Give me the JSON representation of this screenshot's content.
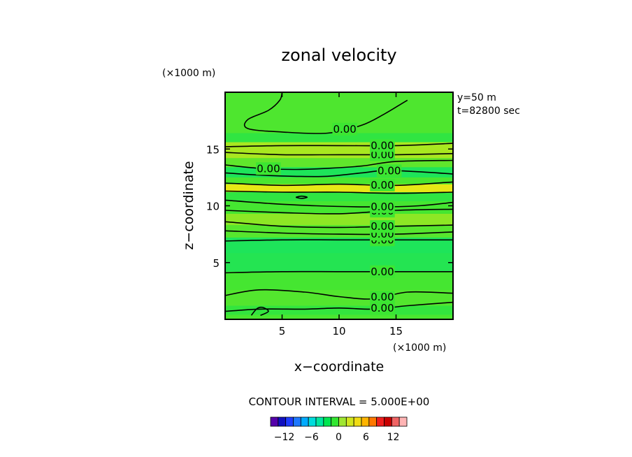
{
  "chart_data": {
    "type": "heatmap",
    "title": "zonal velocity",
    "xlabel": "x−coordinate",
    "ylabel": "z−coordinate",
    "x_unit": "(×1000 m)",
    "z_unit": "(×1000 m)",
    "xlim": [
      0,
      20
    ],
    "zlim": [
      0,
      20
    ],
    "x_ticks": [
      5,
      10,
      15
    ],
    "z_ticks": [
      5,
      10,
      15
    ],
    "annotation_lines": [
      "y=50 m",
      "t=82800 sec"
    ],
    "contour_interval_text": "CONTOUR INTERVAL = 5.000E+00",
    "contour_label_text": "0.00",
    "colorbar": {
      "ticks": [
        -12,
        -6,
        0,
        6,
        12
      ],
      "tick_labels": [
        "−12",
        "−6",
        "0",
        "6",
        "12"
      ],
      "range": [
        -15,
        15
      ],
      "colors": [
        "#5500aa",
        "#1010c0",
        "#1e3cff",
        "#1e78ff",
        "#00aaff",
        "#00dcdc",
        "#00e6a0",
        "#00e650",
        "#32e632",
        "#a0e632",
        "#d2e61e",
        "#f0dc14",
        "#ffb400",
        "#ff7800",
        "#f01e1e",
        "#c80000",
        "#f06464",
        "#ffb4b4"
      ]
    },
    "bands": [
      {
        "z0": 0.0,
        "z1": 0.4,
        "value": 0.3
      },
      {
        "z0": 0.4,
        "z1": 1.2,
        "value": -0.3
      },
      {
        "z0": 1.2,
        "z1": 2.6,
        "value": 0.5
      },
      {
        "z0": 2.6,
        "z1": 4.2,
        "value": 0.2
      },
      {
        "z0": 4.2,
        "z1": 5.8,
        "value": -0.8
      },
      {
        "z0": 5.8,
        "z1": 7.2,
        "value": -1.0
      },
      {
        "z0": 7.2,
        "z1": 8.3,
        "value": 0.6
      },
      {
        "z0": 8.3,
        "z1": 9.3,
        "value": 1.8
      },
      {
        "z0": 9.3,
        "z1": 10.4,
        "value": 0.2
      },
      {
        "z0": 10.4,
        "z1": 11.2,
        "value": -0.4
      },
      {
        "z0": 11.2,
        "z1": 11.9,
        "value": 3.8
      },
      {
        "z0": 11.9,
        "z1": 12.5,
        "value": 0.3
      },
      {
        "z0": 12.5,
        "z1": 13.4,
        "value": -1.0
      },
      {
        "z0": 13.4,
        "z1": 14.2,
        "value": 0.8
      },
      {
        "z0": 14.2,
        "z1": 15.6,
        "value": 2.4
      },
      {
        "z0": 15.6,
        "z1": 16.4,
        "value": -0.4
      },
      {
        "z0": 16.4,
        "z1": 20.0,
        "value": 0.4
      }
    ],
    "contours": [
      {
        "level": 0,
        "points": [
          [
            0,
            0.7
          ],
          [
            3,
            0.9
          ],
          [
            7,
            0.9
          ],
          [
            10,
            1.0
          ],
          [
            13,
            0.9
          ],
          [
            16,
            1.2
          ],
          [
            20,
            1.5
          ]
        ],
        "label_x": 13.8
      },
      {
        "level": 0,
        "points": [
          [
            0,
            2.1
          ],
          [
            3,
            2.6
          ],
          [
            7,
            2.4
          ],
          [
            10,
            2.0
          ],
          [
            13,
            1.8
          ],
          [
            16,
            2.4
          ],
          [
            20,
            2.3
          ]
        ],
        "label_x": 13.8
      },
      {
        "level": 0,
        "points": [
          [
            0,
            4.1
          ],
          [
            5,
            4.2
          ],
          [
            10,
            4.2
          ],
          [
            15,
            4.2
          ],
          [
            20,
            4.2
          ]
        ],
        "label_x": 13.8
      },
      {
        "level": 0,
        "points": [
          [
            0,
            6.9
          ],
          [
            5,
            7.0
          ],
          [
            10,
            7.0
          ],
          [
            15,
            7.0
          ],
          [
            20,
            7.0
          ]
        ],
        "label_x": 13.8
      },
      {
        "level": 0,
        "points": [
          [
            0,
            7.8
          ],
          [
            5,
            7.6
          ],
          [
            10,
            7.5
          ],
          [
            15,
            7.5
          ],
          [
            20,
            7.7
          ]
        ],
        "label_x": 13.8
      },
      {
        "level": 0,
        "points": [
          [
            0,
            8.6
          ],
          [
            5,
            8.2
          ],
          [
            10,
            8.1
          ],
          [
            15,
            8.2
          ],
          [
            20,
            8.3
          ]
        ],
        "label_x": 13.8
      },
      {
        "level": 0,
        "points": [
          [
            0,
            9.6
          ],
          [
            5,
            9.4
          ],
          [
            10,
            9.3
          ],
          [
            15,
            9.6
          ],
          [
            20,
            9.7
          ]
        ],
        "label_x": 13.8
      },
      {
        "level": 0,
        "points": [
          [
            0,
            10.5
          ],
          [
            4,
            10.2
          ],
          [
            8,
            10.0
          ],
          [
            13,
            9.9
          ],
          [
            17,
            10.0
          ],
          [
            20,
            10.3
          ]
        ],
        "label_x": 13.8
      },
      {
        "level": 0,
        "points": [
          [
            0,
            11.3
          ],
          [
            5,
            11.2
          ],
          [
            10,
            11.2
          ],
          [
            15,
            11.1
          ],
          [
            20,
            11.2
          ]
        ],
        "label_x": null
      },
      {
        "level": 0,
        "points": [
          [
            0,
            12.0
          ],
          [
            5,
            11.8
          ],
          [
            10,
            11.9
          ],
          [
            15,
            11.8
          ],
          [
            20,
            12.1
          ]
        ],
        "label_x": 13.8
      },
      {
        "level": 0,
        "points": [
          [
            0,
            12.9
          ],
          [
            3,
            12.7
          ],
          [
            6,
            12.6
          ],
          [
            9,
            12.6
          ],
          [
            12,
            12.9
          ],
          [
            14,
            13.1
          ],
          [
            17,
            13.0
          ],
          [
            20,
            12.8
          ]
        ],
        "label_x": 14.4
      },
      {
        "level": 0,
        "points": [
          [
            0,
            13.6
          ],
          [
            3,
            13.3
          ],
          [
            6,
            13.2
          ],
          [
            9,
            13.3
          ],
          [
            12,
            13.5
          ],
          [
            15,
            13.9
          ],
          [
            20,
            14.0
          ]
        ],
        "label_x": 3.8
      },
      {
        "level": 0,
        "points": [
          [
            0,
            14.7
          ],
          [
            5,
            14.5
          ],
          [
            10,
            14.5
          ],
          [
            15,
            14.5
          ],
          [
            20,
            14.6
          ]
        ],
        "label_x": 13.8
      },
      {
        "level": 0,
        "points": [
          [
            0,
            15.2
          ],
          [
            5,
            15.3
          ],
          [
            10,
            15.3
          ],
          [
            15,
            15.3
          ],
          [
            20,
            15.5
          ]
        ],
        "label_x": 13.8
      },
      {
        "level": 0,
        "points": [
          [
            5,
            20.0
          ],
          [
            4.8,
            19.3
          ],
          [
            3.8,
            18.4
          ],
          [
            2,
            17.6
          ],
          [
            2,
            16.8
          ],
          [
            5,
            16.5
          ],
          [
            9,
            16.4
          ],
          [
            12,
            17.1
          ],
          [
            14,
            18.1
          ],
          [
            15.5,
            19.0
          ],
          [
            16,
            19.3
          ]
        ],
        "label_x": 10.5
      },
      {
        "level": 0,
        "points": [
          [
            6.2,
            10.75
          ],
          [
            6.7,
            10.85
          ],
          [
            7.2,
            10.75
          ],
          [
            6.7,
            10.65
          ],
          [
            6.2,
            10.75
          ]
        ],
        "label_x": null
      },
      {
        "level": 0,
        "points": [
          [
            2.3,
            0.35
          ],
          [
            2.8,
            0.95
          ],
          [
            3.3,
            1.05
          ],
          [
            3.8,
            0.7
          ],
          [
            3.1,
            0.35
          ]
        ],
        "label_x": null
      }
    ]
  }
}
